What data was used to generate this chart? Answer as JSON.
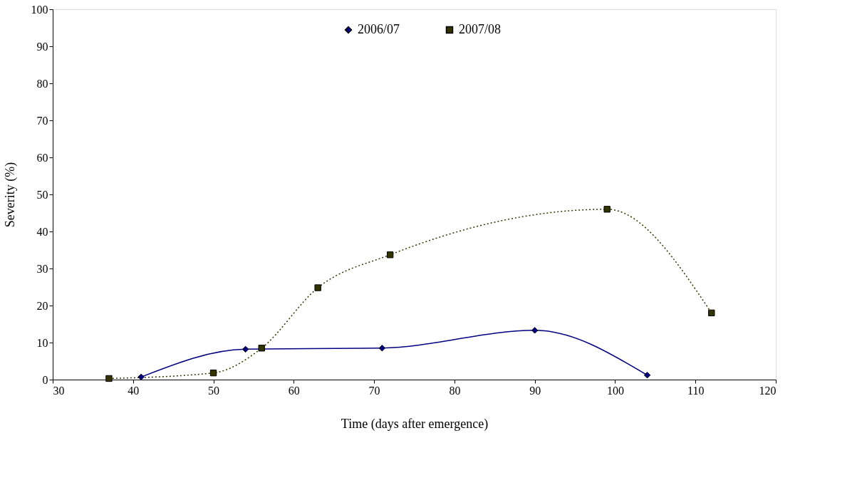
{
  "chart_data": {
    "type": "line",
    "xlabel": "Time (days after emergence)",
    "ylabel": "Severity (%)",
    "xlim": [
      30,
      120
    ],
    "xticks": [
      30,
      40,
      50,
      60,
      70,
      80,
      90,
      100,
      110,
      120
    ],
    "ylim": [
      0,
      100
    ],
    "yticks": [
      0,
      10,
      20,
      30,
      40,
      50,
      60,
      70,
      80,
      90,
      100
    ],
    "grid": false,
    "legend": "top",
    "series": [
      {
        "name": "2006/07",
        "color": "#000080",
        "x": [
          41,
          54,
          71,
          90,
          104
        ],
        "values": [
          0.7,
          8.2,
          8.5,
          13.3,
          1.2
        ],
        "marker": "diamond",
        "line_style": "solid"
      },
      {
        "name": "2007/08",
        "color": "#333300",
        "x": [
          37,
          50,
          56,
          63,
          72,
          99,
          112
        ],
        "values": [
          0.3,
          1.8,
          8.5,
          24.8,
          33.7,
          46,
          18
        ],
        "marker": "square",
        "line_style": "dotted"
      }
    ]
  }
}
